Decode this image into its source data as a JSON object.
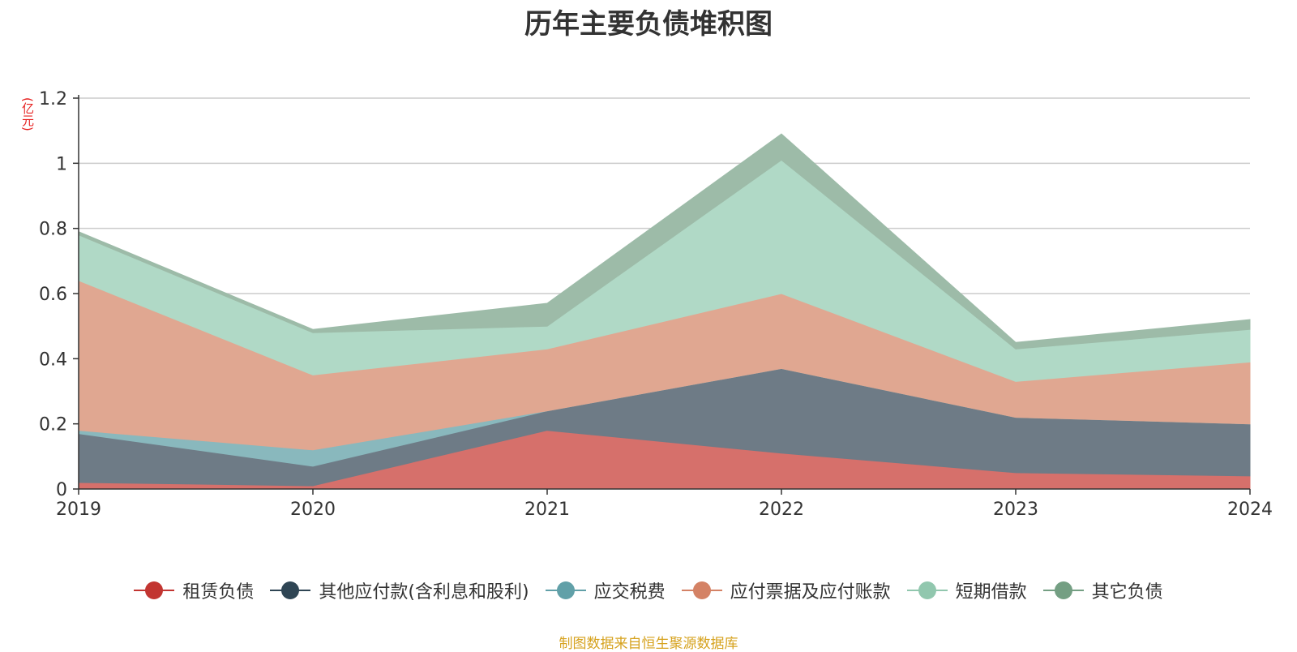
{
  "chart_data": {
    "type": "area",
    "stacked": true,
    "title": "历年主要负债堆积图",
    "unit_label": "(亿元)",
    "x": [
      "2019",
      "2020",
      "2021",
      "2022",
      "2023",
      "2024"
    ],
    "ylim": [
      0,
      1.2
    ],
    "yticks": [
      0,
      0.2,
      0.4,
      0.6,
      0.8,
      1.0,
      1.2
    ],
    "ytick_labels": [
      "0",
      "0.2",
      "0.4",
      "0.6",
      "0.8",
      "1",
      "1.2"
    ],
    "grid": true,
    "legend_position": "bottom",
    "series": [
      {
        "name": "租赁负债",
        "color": "#d6706b",
        "legend_color": "#c23531",
        "values": [
          0.02,
          0.01,
          0.18,
          0.11,
          0.05,
          0.04
        ]
      },
      {
        "name": "其他应付款(含利息和股利)",
        "color": "#6e7b86",
        "legend_color": "#2f4554",
        "values": [
          0.15,
          0.06,
          0.06,
          0.26,
          0.17,
          0.16
        ]
      },
      {
        "name": "应交税费",
        "color": "#89b8bd",
        "legend_color": "#61a0a8",
        "values": [
          0.01,
          0.05,
          0.0,
          0.0,
          0.0,
          0.0
        ]
      },
      {
        "name": "应付票据及应付账款",
        "color": "#e0a791",
        "legend_color": "#d48265",
        "values": [
          0.46,
          0.23,
          0.19,
          0.23,
          0.11,
          0.19
        ]
      },
      {
        "name": "短期借款",
        "color": "#b0d9c6",
        "legend_color": "#91c7ae",
        "values": [
          0.14,
          0.13,
          0.07,
          0.41,
          0.1,
          0.1
        ]
      },
      {
        "name": "其它负债",
        "color": "#9dbba8",
        "legend_color": "#749f83",
        "values": [
          0.01,
          0.01,
          0.07,
          0.08,
          0.02,
          0.03
        ]
      }
    ]
  },
  "source_note": "制图数据来自恒生聚源数据库"
}
